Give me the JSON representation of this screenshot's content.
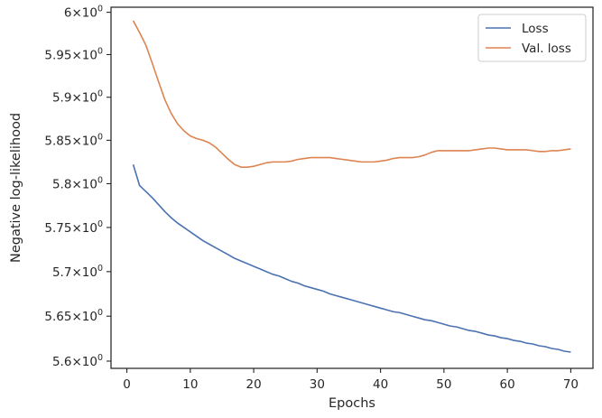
{
  "chart_data": {
    "type": "line",
    "title": "",
    "xlabel": "Epochs",
    "ylabel": "Negative log-likelihood",
    "y_scale": "log",
    "xlim": [
      -2.5,
      73.5
    ],
    "ylim": [
      5.592,
      6.006
    ],
    "grid": false,
    "legend_placement": "top-right",
    "x_ticks": [
      0,
      10,
      20,
      30,
      40,
      50,
      60,
      70
    ],
    "x_tick_labels": [
      "0",
      "10",
      "20",
      "30",
      "40",
      "50",
      "60",
      "70"
    ],
    "y_ticks": [
      5.6,
      5.65,
      5.7,
      5.75,
      5.8,
      5.85,
      5.9,
      5.95,
      6.0
    ],
    "y_tick_labels": [
      {
        "mantissa": "5.6",
        "base": "10",
        "exp": "0"
      },
      {
        "mantissa": "5.65",
        "base": "10",
        "exp": "0"
      },
      {
        "mantissa": "5.7",
        "base": "10",
        "exp": "0"
      },
      {
        "mantissa": "5.75",
        "base": "10",
        "exp": "0"
      },
      {
        "mantissa": "5.8",
        "base": "10",
        "exp": "0"
      },
      {
        "mantissa": "5.85",
        "base": "10",
        "exp": "0"
      },
      {
        "mantissa": "5.9",
        "base": "10",
        "exp": "0"
      },
      {
        "mantissa": "5.95",
        "base": "10",
        "exp": "0"
      },
      {
        "mantissa": "6",
        "base": "10",
        "exp": "0"
      }
    ],
    "series": [
      {
        "name": "Loss",
        "color": "#4c72b0",
        "x": [
          1,
          2,
          3,
          4,
          5,
          6,
          7,
          8,
          9,
          10,
          11,
          12,
          13,
          14,
          15,
          16,
          17,
          18,
          19,
          20,
          21,
          22,
          23,
          24,
          25,
          26,
          27,
          28,
          29,
          30,
          31,
          32,
          33,
          34,
          35,
          36,
          37,
          38,
          39,
          40,
          41,
          42,
          43,
          44,
          45,
          46,
          47,
          48,
          49,
          50,
          51,
          52,
          53,
          54,
          55,
          56,
          57,
          58,
          59,
          60,
          61,
          62,
          63,
          64,
          65,
          66,
          67,
          68,
          69,
          70
        ],
        "y": [
          5.822,
          5.798,
          5.791,
          5.784,
          5.776,
          5.768,
          5.761,
          5.755,
          5.75,
          5.745,
          5.74,
          5.735,
          5.731,
          5.727,
          5.723,
          5.719,
          5.715,
          5.712,
          5.709,
          5.706,
          5.703,
          5.7,
          5.697,
          5.695,
          5.692,
          5.689,
          5.687,
          5.684,
          5.682,
          5.68,
          5.678,
          5.675,
          5.673,
          5.671,
          5.669,
          5.667,
          5.665,
          5.663,
          5.661,
          5.659,
          5.657,
          5.655,
          5.654,
          5.652,
          5.65,
          5.648,
          5.646,
          5.645,
          5.643,
          5.641,
          5.639,
          5.638,
          5.636,
          5.634,
          5.633,
          5.631,
          5.629,
          5.628,
          5.626,
          5.625,
          5.623,
          5.622,
          5.62,
          5.619,
          5.617,
          5.616,
          5.614,
          5.613,
          5.611,
          5.61
        ]
      },
      {
        "name": "Val. loss",
        "color": "#dd8452",
        "x": [
          1,
          2,
          3,
          4,
          5,
          6,
          7,
          8,
          9,
          10,
          11,
          12,
          13,
          14,
          15,
          16,
          17,
          18,
          19,
          20,
          21,
          22,
          23,
          24,
          25,
          26,
          27,
          28,
          29,
          30,
          31,
          32,
          33,
          34,
          35,
          36,
          37,
          38,
          39,
          40,
          41,
          42,
          43,
          44,
          45,
          46,
          47,
          48,
          49,
          50,
          51,
          52,
          53,
          54,
          55,
          56,
          57,
          58,
          59,
          60,
          61,
          62,
          63,
          64,
          65,
          66,
          67,
          68,
          69,
          70
        ],
        "y": [
          5.99,
          5.976,
          5.961,
          5.94,
          5.918,
          5.897,
          5.881,
          5.869,
          5.861,
          5.855,
          5.852,
          5.85,
          5.847,
          5.842,
          5.835,
          5.828,
          5.822,
          5.819,
          5.819,
          5.82,
          5.822,
          5.824,
          5.825,
          5.825,
          5.825,
          5.826,
          5.828,
          5.829,
          5.83,
          5.83,
          5.83,
          5.83,
          5.829,
          5.828,
          5.827,
          5.826,
          5.825,
          5.825,
          5.825,
          5.826,
          5.827,
          5.829,
          5.83,
          5.83,
          5.83,
          5.831,
          5.833,
          5.836,
          5.838,
          5.838,
          5.838,
          5.838,
          5.838,
          5.838,
          5.839,
          5.84,
          5.841,
          5.841,
          5.84,
          5.839,
          5.839,
          5.839,
          5.839,
          5.838,
          5.837,
          5.837,
          5.838,
          5.838,
          5.839,
          5.84
        ]
      }
    ]
  }
}
